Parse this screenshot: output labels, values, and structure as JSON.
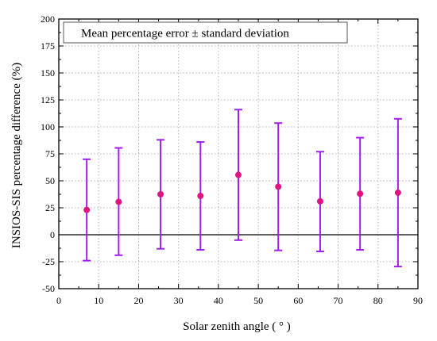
{
  "chart_data": {
    "type": "scatter",
    "title": "",
    "legend_box_text": "Mean percentage error ± standard deviation",
    "legend_position": "top-left",
    "xlabel": "Solar zenith angle ( ° )",
    "ylabel": "INSIOS-SIS percentage difference (%)",
    "xlim": [
      0,
      90
    ],
    "ylim": [
      -50,
      200
    ],
    "xticks": [
      0,
      10,
      20,
      30,
      40,
      50,
      60,
      70,
      80,
      90
    ],
    "yticks": [
      -50,
      -25,
      0,
      25,
      50,
      75,
      100,
      125,
      150,
      175,
      200
    ],
    "grid": true,
    "zero_line": true,
    "series": [
      {
        "marker_color": "#e0137f",
        "errorbar_color": "#a020f0",
        "points": [
          {
            "x": 7,
            "y": 23,
            "low": -24,
            "high": 70
          },
          {
            "x": 15,
            "y": 30.5,
            "low": -19,
            "high": 80.5
          },
          {
            "x": 25.5,
            "y": 37.5,
            "low": -13,
            "high": 88
          },
          {
            "x": 35.5,
            "y": 36,
            "low": -14,
            "high": 86
          },
          {
            "x": 45,
            "y": 55.5,
            "low": -5,
            "high": 116
          },
          {
            "x": 55,
            "y": 44.5,
            "low": -14.5,
            "high": 103.5
          },
          {
            "x": 65.5,
            "y": 31,
            "low": -15.5,
            "high": 77
          },
          {
            "x": 75.5,
            "y": 38,
            "low": -14,
            "high": 90
          },
          {
            "x": 85,
            "y": 39,
            "low": -29.5,
            "high": 107.5
          }
        ]
      }
    ]
  }
}
